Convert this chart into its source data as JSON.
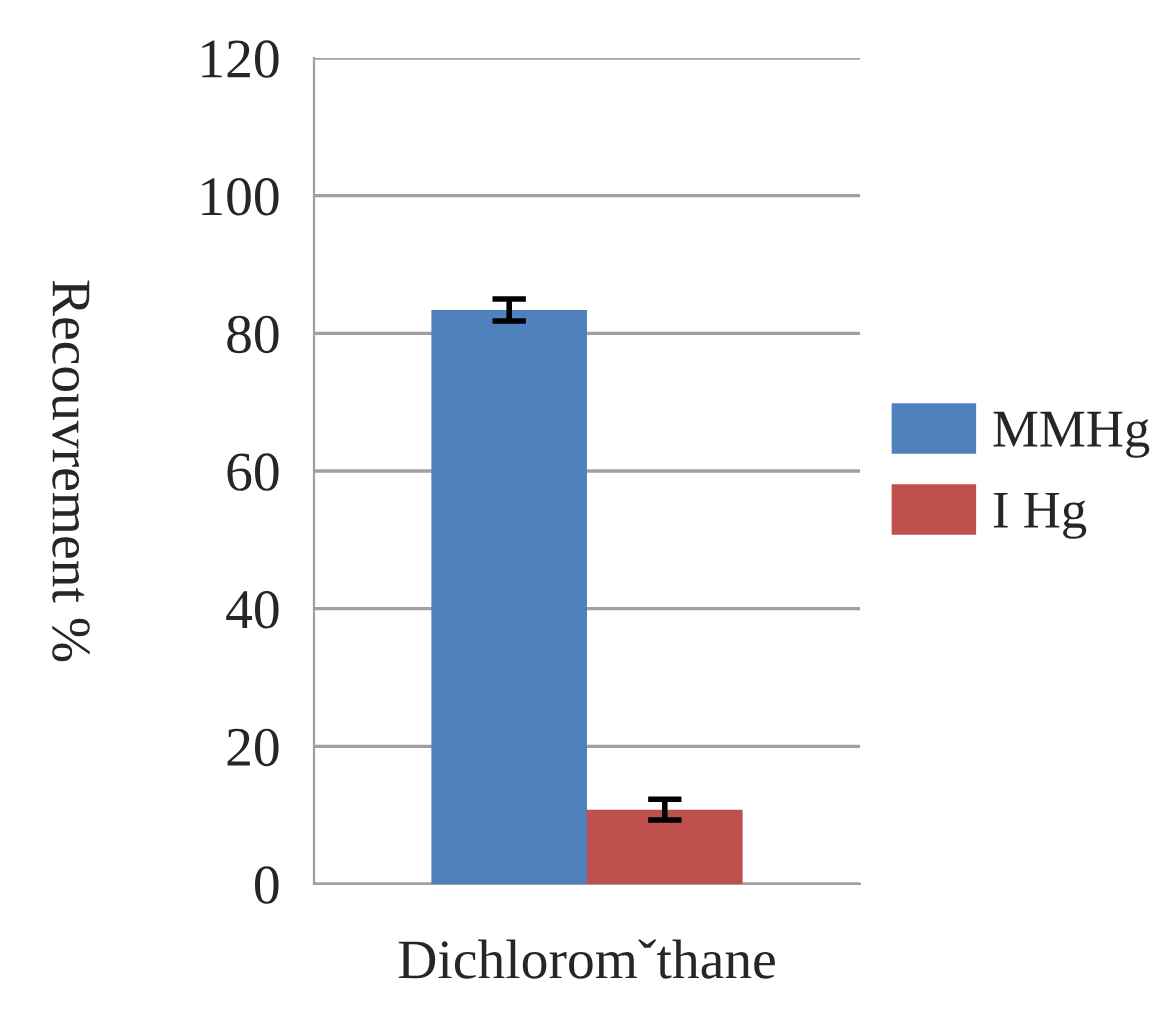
{
  "chart_data": {
    "type": "bar",
    "ylabel": "Recouvrement %",
    "categories": [
      "Dichloromˇthane"
    ],
    "series": [
      {
        "name": "MMHg",
        "color": "#4f81bd",
        "values": [
          83.4
        ],
        "errors": [
          1.6
        ]
      },
      {
        "name": "I Hg",
        "color": "#c0504d",
        "values": [
          10.8
        ],
        "errors": [
          1.5
        ]
      }
    ],
    "ylim": [
      0,
      120
    ],
    "yticks": [
      0,
      20,
      40,
      60,
      80,
      100,
      120
    ],
    "grid": "y",
    "legend": "right"
  }
}
